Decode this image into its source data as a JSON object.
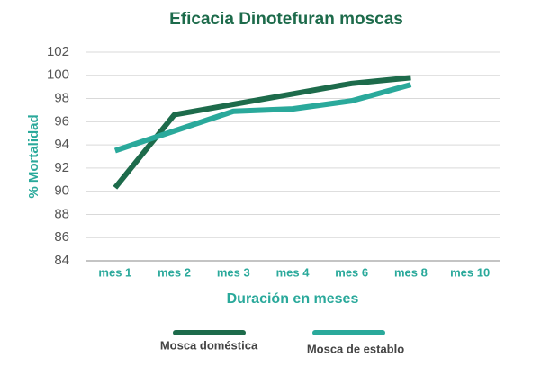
{
  "chart_data": {
    "type": "line",
    "title": "Eficacia Dinotefuran moscas",
    "x_label": "Duración en meses",
    "y_label": "% Mortalidad",
    "categories": [
      "mes 1",
      "mes 2",
      "mes 3",
      "mes 4",
      "mes 6",
      "mes 8",
      "mes 10"
    ],
    "series": [
      {
        "name": "Mosca doméstica",
        "color": "#1d6b4b",
        "values": [
          90.3,
          96.6,
          97.5,
          98.4,
          99.3,
          99.8,
          null
        ]
      },
      {
        "name": "Mosca de establo",
        "color": "#2aa99b",
        "values": [
          93.5,
          95.2,
          96.9,
          97.1,
          97.8,
          99.2,
          null
        ]
      }
    ],
    "ylim": [
      84,
      102
    ],
    "yticks": [
      84,
      86,
      88,
      90,
      92,
      94,
      96,
      98,
      100,
      102
    ],
    "grid": true,
    "legend": "bottom"
  }
}
